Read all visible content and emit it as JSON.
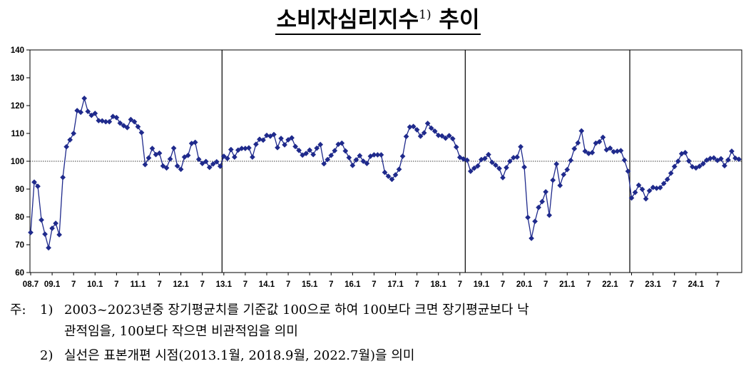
{
  "title": {
    "text": "소비자심리지수",
    "sup": "1)",
    "tail": "추이"
  },
  "chart_data": {
    "type": "line",
    "title": "소비자심리지수1) 추이",
    "xlabel": "",
    "ylabel": "",
    "ylim": [
      60,
      140
    ],
    "yticks": [
      60,
      70,
      80,
      90,
      100,
      110,
      120,
      130,
      140
    ],
    "reference_line": 100,
    "x_tick_labels": [
      "08.7",
      "09.1",
      "7",
      "10.1",
      "7",
      "11.1",
      "7",
      "12.1",
      "7",
      "13.1",
      "7",
      "14.1",
      "7",
      "15.1",
      "7",
      "16.1",
      "7",
      "17.1",
      "7",
      "18.1",
      "7",
      "19.1",
      "7",
      "20.1",
      "7",
      "21.1",
      "7",
      "22.1",
      "7",
      "23.1",
      "7",
      "24.1",
      "7"
    ],
    "vertical_lines": [
      "2013.1",
      "2018.9",
      "2022.7"
    ],
    "start": "2008.7",
    "series": [
      {
        "color": "#1f2a8c",
        "values": [
          74.4,
          92.5,
          91.0,
          78.9,
          73.8,
          68.9,
          75.9,
          77.7,
          73.6,
          94.2,
          105.2,
          107.7,
          110.0,
          118.2,
          117.6,
          122.6,
          117.9,
          116.5,
          117.2,
          114.6,
          114.5,
          114.2,
          114.2,
          116.1,
          115.7,
          113.7,
          112.8,
          112.1,
          115.0,
          114.2,
          112.4,
          110.3,
          98.8,
          101.2,
          104.6,
          102.4,
          102.9,
          98.3,
          97.6,
          100.8,
          104.7,
          98.3,
          97.1,
          101.5,
          102.1,
          106.4,
          106.8,
          100.7,
          99.2,
          99.9,
          97.8,
          99.0,
          99.8,
          98.2,
          101.8,
          101.0,
          104.2,
          101.5,
          104.0,
          104.6,
          104.6,
          104.8,
          101.5,
          106.1,
          107.9,
          107.6,
          109.3,
          109.0,
          109.6,
          104.9,
          108.2,
          105.9,
          107.7,
          108.4,
          105.3,
          103.9,
          102.2,
          102.8,
          104.0,
          102.4,
          104.7,
          106.0,
          99.1,
          100.6,
          102.1,
          103.8,
          106.1,
          106.5,
          103.7,
          101.3,
          98.5,
          100.5,
          102.0,
          100.0,
          99.2,
          101.8,
          102.3,
          102.3,
          102.3,
          96.0,
          94.6,
          93.5,
          95.1,
          97.1,
          101.8,
          108.9,
          112.3,
          112.5,
          111.3,
          109.0,
          110.2,
          113.6,
          111.9,
          110.8,
          109.3,
          109.1,
          108.3,
          109.2,
          108.1,
          105.1,
          101.4,
          100.8,
          100.4,
          96.4,
          97.5,
          98.3,
          100.6,
          101.0,
          102.4,
          99.6,
          98.6,
          97.4,
          94.1,
          97.7,
          100.0,
          101.3,
          101.5,
          105.2,
          97.9,
          79.8,
          72.3,
          78.4,
          83.4,
          85.5,
          89.0,
          80.6,
          93.2,
          99.0,
          91.3,
          95.2,
          97.0,
          100.3,
          104.5,
          106.6,
          110.9,
          103.6,
          102.8,
          103.1,
          106.5,
          107.0,
          108.6,
          104.1,
          104.7,
          103.4,
          103.6,
          103.8,
          100.4,
          96.4,
          86.8,
          88.8,
          91.4,
          89.9,
          86.5,
          89.4,
          90.6,
          90.3,
          90.5,
          92.0,
          93.5,
          95.7,
          98.1,
          100.0,
          102.7,
          103.1,
          100.1,
          98.0,
          97.6,
          98.2,
          99.1,
          100.4,
          101.0,
          101.2,
          100.3,
          100.9,
          98.4,
          100.5,
          103.6,
          101.1,
          100.7
        ]
      }
    ]
  },
  "notes": {
    "label": "주:",
    "items": [
      {
        "num": "1)",
        "line1": "2003~2023년중 장기평균치를 기준값 100으로 하여 100보다 크면 장기평균보다 낙",
        "line2": "관적임을, 100보다 작으면 비관적임을 의미"
      },
      {
        "num": "2)",
        "line1": "실선은 표본개편 시점(2013.1월, 2018.9월, 2022.7월)을 의미"
      }
    ]
  }
}
